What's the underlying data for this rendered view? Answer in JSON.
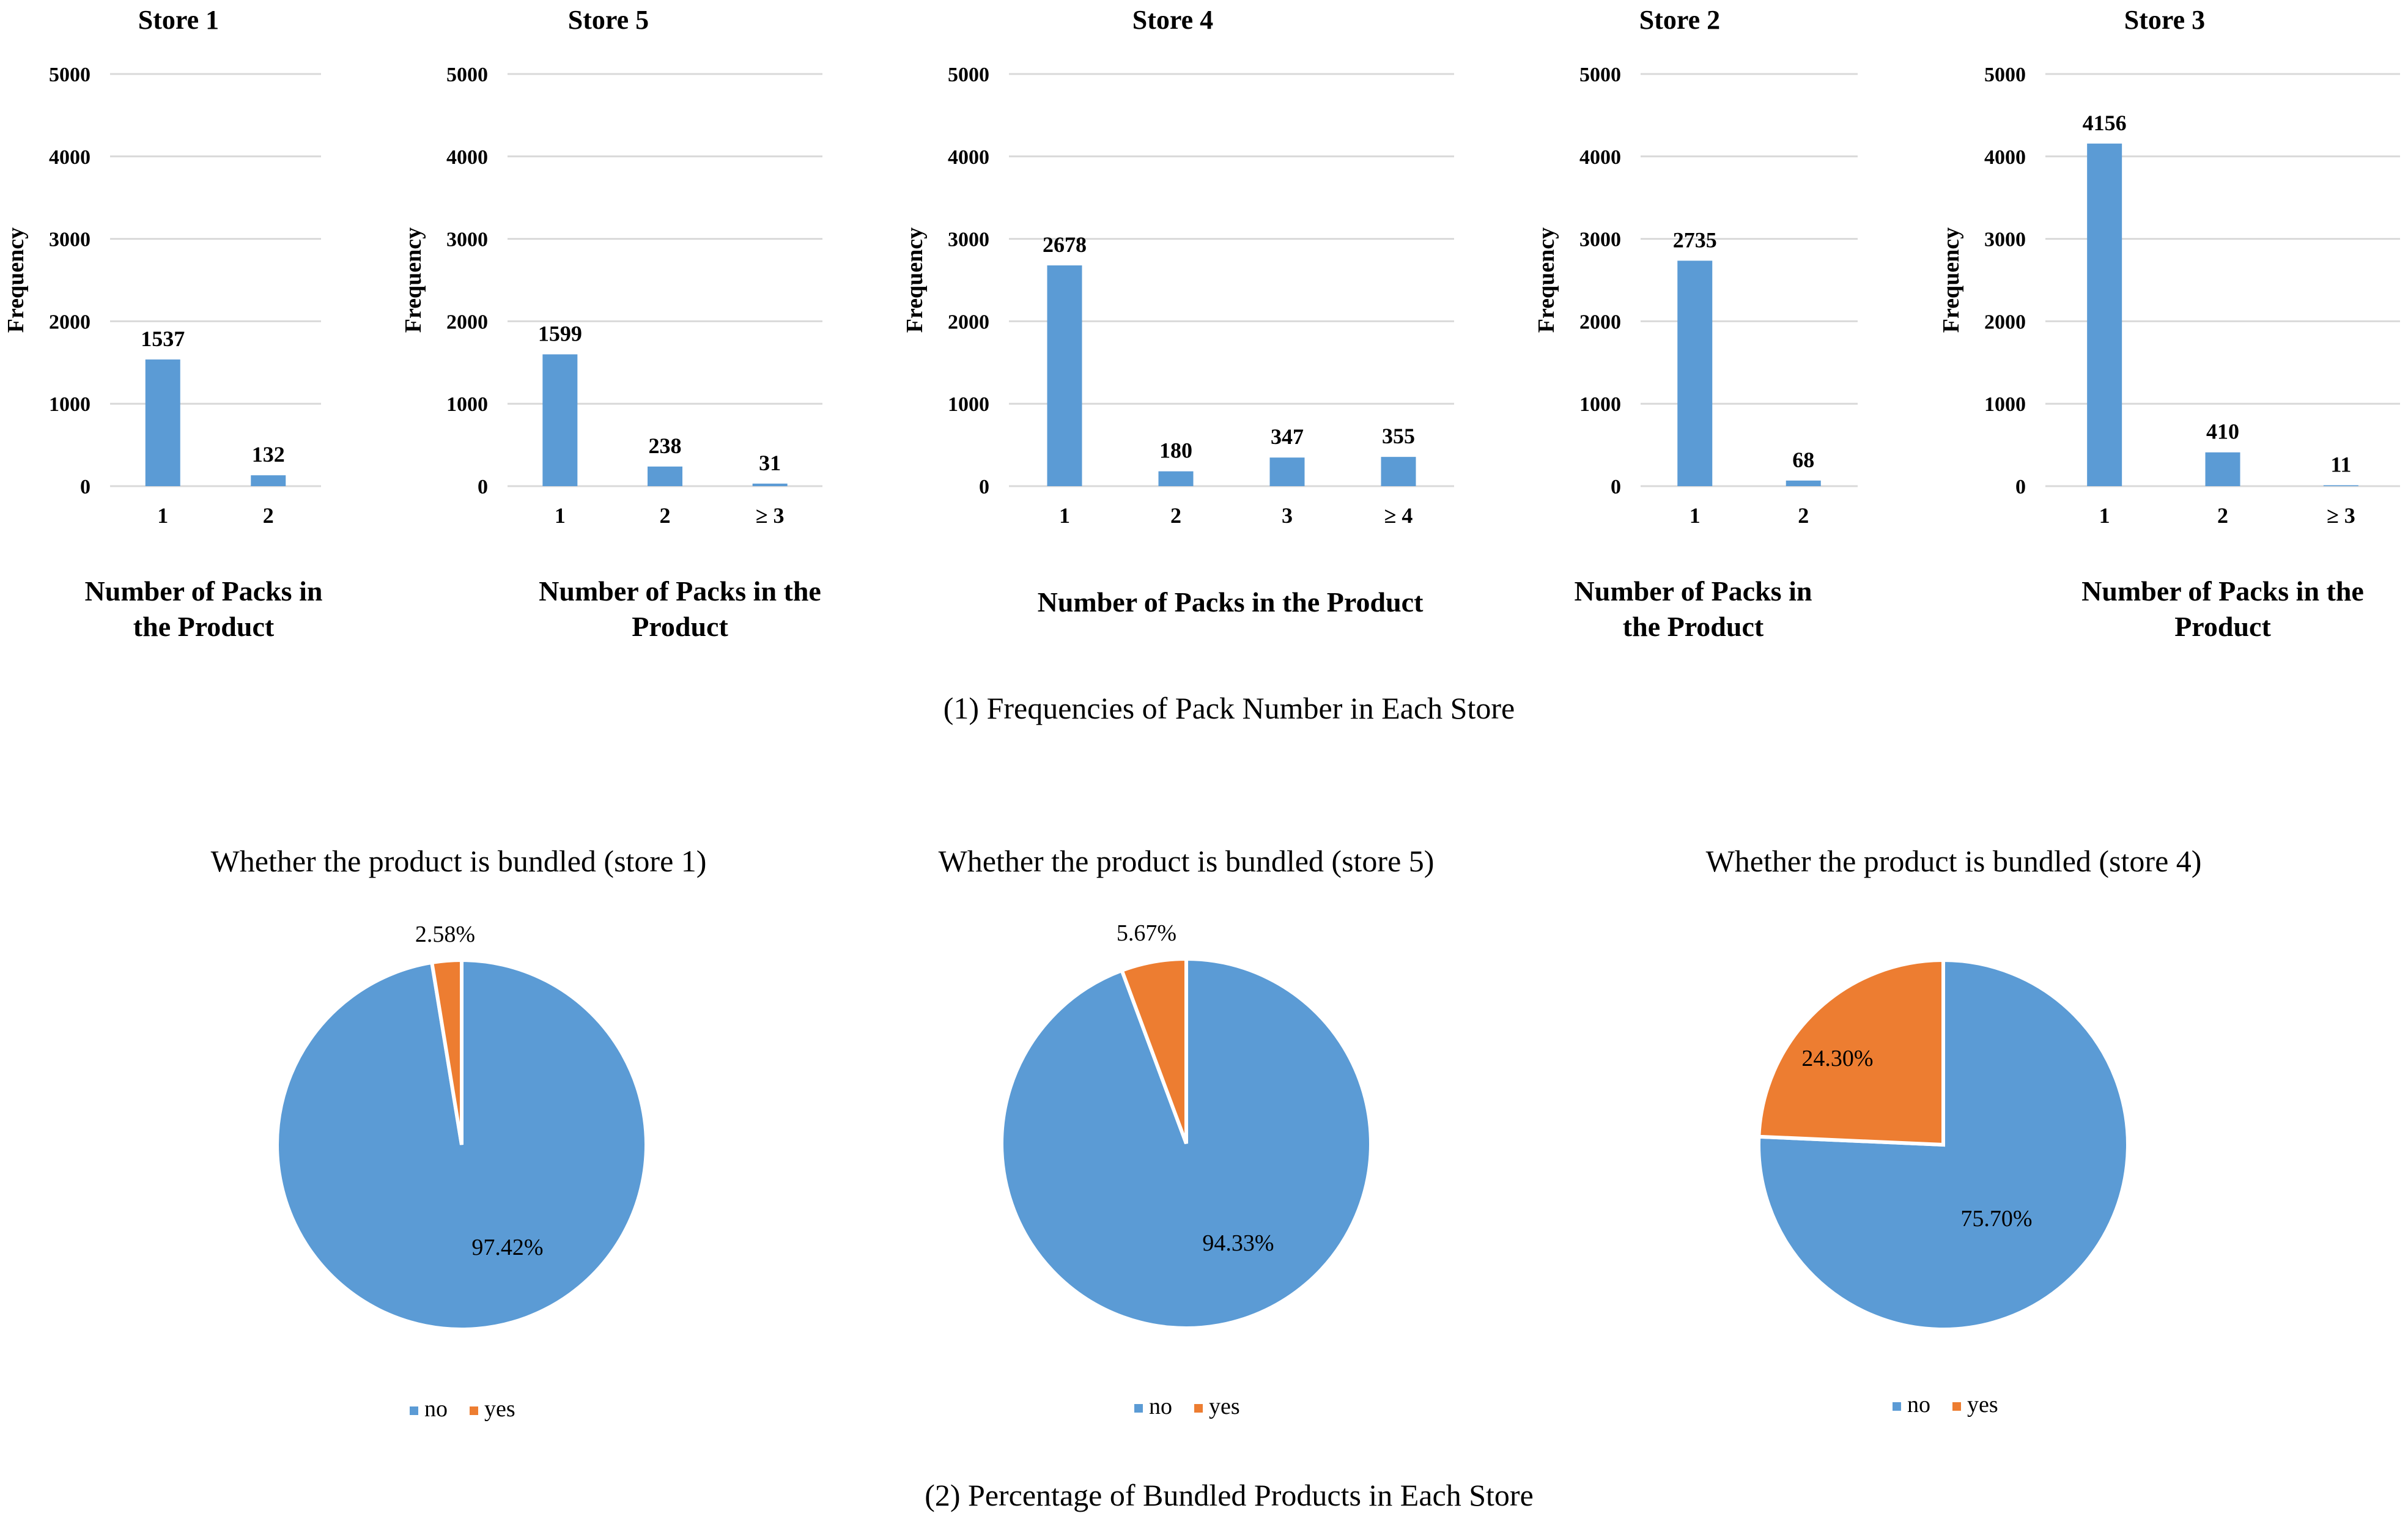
{
  "panel1_caption": "(1) Frequencies of Pack Number in Each Store",
  "panel2_caption": "(2) Percentage of Bundled Products in Each Store",
  "colors": {
    "no": "#5B9BD5",
    "yes": "#ED7D31",
    "grid": "#D9D9D9"
  },
  "chart_data": [
    {
      "type": "bar",
      "title": "Store 1",
      "ylabel": "Frequency",
      "xlabel": "Number of Packs in the Product",
      "xlabel_lines": [
        "Number of Packs in",
        "the Product"
      ],
      "ylim": [
        0,
        5000
      ],
      "yticks": [
        0,
        1000,
        2000,
        3000,
        4000,
        5000
      ],
      "categories": [
        "1",
        "2"
      ],
      "values": [
        1537,
        132
      ],
      "labels": [
        "1537",
        "132"
      ]
    },
    {
      "type": "bar",
      "title": "Store 5",
      "ylabel": "Frequency",
      "xlabel": "Number of Packs in the Product",
      "xlabel_lines": [
        "Number of Packs in the",
        "Product"
      ],
      "ylim": [
        0,
        5000
      ],
      "yticks": [
        0,
        1000,
        2000,
        3000,
        4000,
        5000
      ],
      "categories": [
        "1",
        "2",
        "≥ 3"
      ],
      "values": [
        1599,
        238,
        31
      ],
      "labels": [
        "1599",
        "238",
        "31"
      ]
    },
    {
      "type": "bar",
      "title": "Store 4",
      "ylabel": "Frequency",
      "xlabel": "Number of Packs in the Product",
      "xlabel_lines": [
        "Number of Packs in the Product"
      ],
      "ylim": [
        0,
        5000
      ],
      "yticks": [
        0,
        1000,
        2000,
        3000,
        4000,
        5000
      ],
      "categories": [
        "1",
        "2",
        "3",
        "≥ 4"
      ],
      "values": [
        2678,
        180,
        347,
        355
      ],
      "labels": [
        "2678",
        "180",
        "347",
        "355"
      ]
    },
    {
      "type": "bar",
      "title": "Store 2",
      "ylabel": "Frequency",
      "xlabel": "Number of Packs in the Product",
      "xlabel_lines": [
        "Number of Packs in",
        "the Product"
      ],
      "ylim": [
        0,
        5000
      ],
      "yticks": [
        0,
        1000,
        2000,
        3000,
        4000,
        5000
      ],
      "categories": [
        "1",
        "2"
      ],
      "values": [
        2735,
        68
      ],
      "labels": [
        "2735",
        "68"
      ]
    },
    {
      "type": "bar",
      "title": "Store 3",
      "ylabel": "Frequency",
      "xlabel": "Number of Packs in the Product",
      "xlabel_lines": [
        "Number of Packs in the",
        "Product"
      ],
      "ylim": [
        0,
        5000
      ],
      "yticks": [
        0,
        1000,
        2000,
        3000,
        4000,
        5000
      ],
      "categories": [
        "1",
        "2",
        "≥ 3"
      ],
      "values": [
        4156,
        410,
        11
      ],
      "labels": [
        "4156",
        "410",
        "11"
      ]
    },
    {
      "type": "pie",
      "title": "Whether the product is bundled (store 1)",
      "categories": [
        "no",
        "yes"
      ],
      "values": [
        97.42,
        2.58
      ],
      "labels": [
        "97.42%",
        "2.58%"
      ],
      "legend": [
        "no",
        "yes"
      ]
    },
    {
      "type": "pie",
      "title": "Whether the product is bundled (store 5)",
      "categories": [
        "no",
        "yes"
      ],
      "values": [
        94.33,
        5.67
      ],
      "labels": [
        "94.33%",
        "5.67%"
      ],
      "legend": [
        "no",
        "yes"
      ]
    },
    {
      "type": "pie",
      "title": "Whether the product is bundled (store 4)",
      "categories": [
        "no",
        "yes"
      ],
      "values": [
        75.7,
        24.3
      ],
      "labels": [
        "75.70%",
        "24.30%"
      ],
      "legend": [
        "no",
        "yes"
      ]
    }
  ]
}
